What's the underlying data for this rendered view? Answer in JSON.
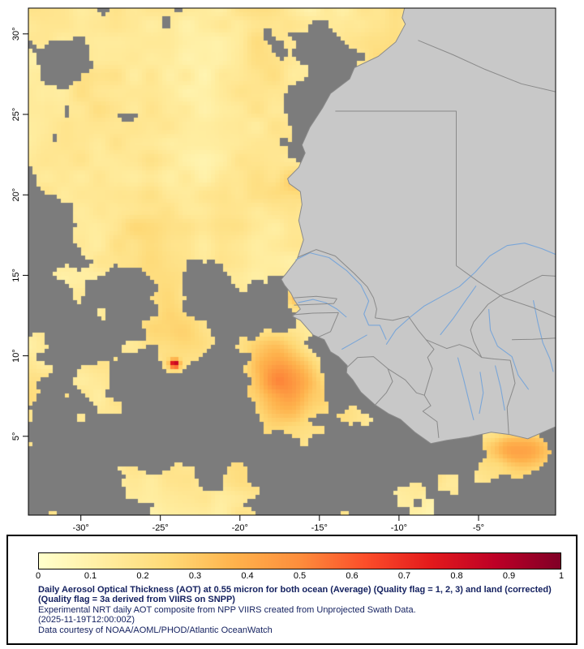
{
  "figure": {
    "map": {
      "colors": {
        "ocean_nodata": "#7c7c7c",
        "land": "#c8c8c8",
        "coast_border": "#8a8a8a",
        "country_border": "#8a8a8a",
        "river": "#7aa6d8",
        "frame": "#000000"
      },
      "lat_ticks": [
        "30°",
        "25°",
        "20°",
        "15°",
        "10°",
        "5°"
      ],
      "lon_ticks": [
        "-30°",
        "-25°",
        "-20°",
        "-15°",
        "-10°",
        "-5°"
      ]
    },
    "legend": {
      "ticks": [
        "0",
        "0.1",
        "0.2",
        "0.3",
        "0.4",
        "0.5",
        "0.6",
        "0.7",
        "0.8",
        "0.9",
        "1"
      ],
      "colormap_stops": [
        "#ffffcc",
        "#ffeda0",
        "#fed976",
        "#feb24c",
        "#fd8d3c",
        "#fc4e2a",
        "#e31a1c",
        "#bd0026",
        "#800026"
      ],
      "title": "Daily Aerosol Optical Thickness (AOT) at 0.55 micron for both ocean (Average) (Quality flag = 1, 2, 3) and land (corrected) (Quality flag = 3a derived from VIIRS on SNPP)",
      "line2": "Experimental NRT daily AOT composite from NPP VIIRS created from Unprojected Swath Data.",
      "line3": "(2025-11-19T12:00:00Z)",
      "line4": "Data courtesy of NOAA/AOML/PHOD/Atlantic OceanWatch",
      "text_color": "#13205f"
    }
  },
  "chart_data": {
    "type": "heatmap",
    "title": "Daily Aerosol Optical Thickness (AOT) at 0.55 micron for both ocean (Average) and land (corrected)",
    "x_ticks": [
      "-30°",
      "-25°",
      "-20°",
      "-15°",
      "-10°",
      "-5°"
    ],
    "y_ticks": [
      "30°",
      "25°",
      "20°",
      "15°",
      "10°",
      "5°"
    ],
    "colorbar_ticks": [
      0,
      0.1,
      0.2,
      0.3,
      0.4,
      0.5,
      0.6,
      0.7,
      0.8,
      0.9,
      1
    ],
    "colorbar_range": [
      0,
      1
    ],
    "palette_stops": [
      "#ffffcc",
      "#ffeda0",
      "#fed976",
      "#feb24c",
      "#fd8d3c",
      "#fc4e2a",
      "#e31a1c",
      "#bd0026",
      "#800026"
    ],
    "timestamp": "2025-11-19T12:00:00Z",
    "source": "NOAA/AOML/PHOD/Atlantic OceanWatch"
  }
}
